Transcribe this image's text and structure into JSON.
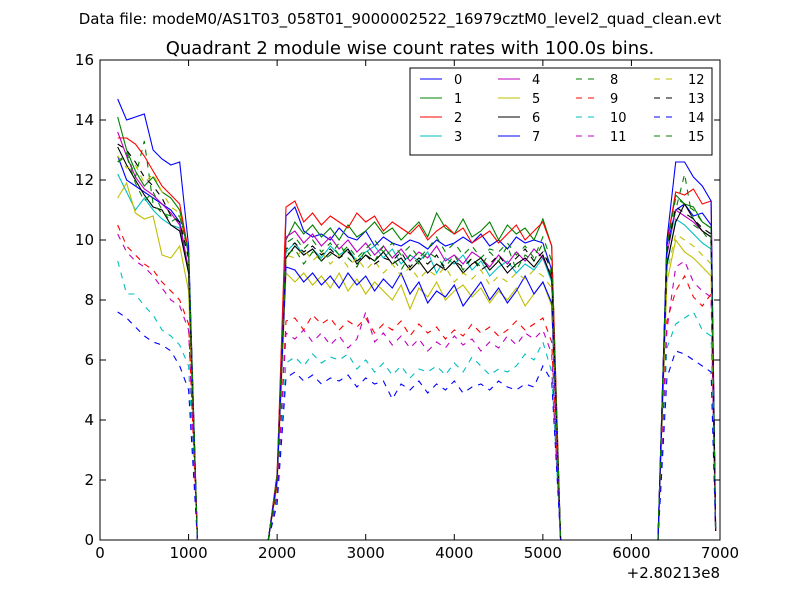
{
  "figure": {
    "suptitle": "Data file: modeM0/AS1T03_058T01_9000002522_16979cztM0_level2_quad_clean.evt"
  },
  "chart_data": {
    "type": "line",
    "title": "Quadrant 2 module wise count rates with 100.0s bins.",
    "xlabel": "",
    "ylabel": "",
    "xlim": [
      0,
      7000
    ],
    "ylim": [
      0,
      16
    ],
    "x_offset_label": "+2.80213e8",
    "xticks": [
      "0",
      "1000",
      "2000",
      "3000",
      "4000",
      "5000",
      "6000",
      "7000"
    ],
    "yticks": [
      "0",
      "2",
      "4",
      "6",
      "8",
      "10",
      "12",
      "14",
      "16"
    ],
    "grid": false,
    "legend_position": "top-right",
    "legend_columns": 4,
    "segments": {
      "x1": [
        200,
        300,
        400,
        500,
        600,
        700,
        800,
        900,
        1000,
        1100
      ],
      "x2": [
        1900,
        2000,
        2100,
        2200,
        2300,
        2400,
        2500,
        2600,
        2700,
        2800,
        2900,
        3000,
        3100,
        3200,
        3300,
        3400,
        3500,
        3600,
        3700,
        3800,
        3900,
        4000,
        4100,
        4200,
        4300,
        4400,
        4500,
        4600,
        4700,
        4800,
        4900,
        5000,
        5100,
        5200
      ],
      "x3": [
        6300,
        6400,
        6500,
        6600,
        6700,
        6800,
        6900,
        6950
      ]
    },
    "series": [
      {
        "name": "0",
        "color": "#0000ff",
        "dash": "solid",
        "seg1": [
          12.8,
          12.0,
          11.8,
          11.6,
          11.4,
          11.2,
          11.0,
          10.6,
          9.0,
          0.0
        ],
        "seg2": [
          0.0,
          2.0,
          10.8,
          11.1,
          10.3,
          10.1,
          10.2,
          10.0,
          10.4,
          10.1,
          10.0,
          10.3,
          9.8,
          10.1,
          9.9,
          9.8,
          10.0,
          9.9,
          9.7,
          10.0,
          9.8,
          9.9,
          10.1,
          9.9,
          10.2,
          9.8,
          10.0,
          9.7,
          10.1,
          9.9,
          10.0,
          9.9,
          9.0,
          0.0
        ],
        "seg3": [
          0.0,
          9.8,
          11.0,
          11.2,
          10.8,
          10.9,
          10.5,
          0.4
        ]
      },
      {
        "name": "1",
        "color": "#008000",
        "dash": "solid",
        "seg1": [
          14.1,
          13.0,
          12.3,
          11.8,
          12.1,
          11.6,
          11.4,
          11.0,
          9.5,
          0.0
        ],
        "seg2": [
          0.0,
          2.2,
          10.0,
          10.6,
          10.2,
          10.5,
          10.1,
          10.4,
          10.0,
          10.5,
          10.1,
          10.3,
          10.6,
          10.2,
          10.4,
          10.0,
          10.3,
          10.6,
          10.1,
          10.9,
          10.4,
          10.2,
          10.7,
          10.1,
          10.3,
          10.6,
          10.0,
          10.5,
          10.2,
          10.4,
          10.0,
          10.7,
          9.8,
          0.0
        ],
        "seg3": [
          0.0,
          9.9,
          11.5,
          11.2,
          11.1,
          10.6,
          10.4,
          0.4
        ]
      },
      {
        "name": "2",
        "color": "#ff0000",
        "dash": "solid",
        "seg1": [
          13.4,
          13.4,
          13.2,
          12.8,
          12.3,
          11.8,
          11.5,
          11.2,
          9.6,
          0.0
        ],
        "seg2": [
          0.0,
          2.2,
          11.1,
          11.3,
          10.6,
          10.9,
          10.5,
          10.8,
          10.6,
          10.4,
          10.9,
          10.6,
          10.8,
          10.3,
          10.6,
          10.4,
          10.2,
          10.5,
          10.0,
          10.3,
          10.5,
          10.2,
          10.4,
          9.9,
          10.1,
          10.3,
          9.9,
          10.2,
          10.5,
          10.0,
          10.3,
          10.6,
          9.8,
          0.0
        ],
        "seg3": [
          0.0,
          9.9,
          11.6,
          11.5,
          11.7,
          11.2,
          11.3,
          0.4
        ]
      },
      {
        "name": "3",
        "color": "#00bfbf",
        "dash": "solid",
        "seg1": [
          12.2,
          11.6,
          11.0,
          11.4,
          11.0,
          10.7,
          10.5,
          10.4,
          8.9,
          0.0
        ],
        "seg2": [
          0.0,
          2.0,
          9.6,
          9.9,
          9.5,
          9.7,
          9.4,
          9.8,
          9.5,
          9.7,
          9.3,
          9.6,
          9.8,
          9.4,
          9.7,
          9.2,
          9.5,
          9.3,
          9.6,
          8.9,
          9.4,
          9.2,
          9.5,
          9.0,
          9.3,
          8.8,
          9.1,
          9.3,
          8.9,
          9.2,
          9.0,
          9.4,
          8.6,
          0.0
        ],
        "seg3": [
          0.0,
          9.1,
          10.7,
          10.5,
          10.2,
          9.9,
          9.7,
          0.4
        ]
      },
      {
        "name": "4",
        "color": "#bf00bf",
        "dash": "solid",
        "seg1": [
          13.6,
          12.8,
          12.1,
          11.7,
          11.5,
          11.2,
          10.9,
          10.5,
          9.0,
          0.0
        ],
        "seg2": [
          0.0,
          2.0,
          10.1,
          10.3,
          9.9,
          10.2,
          9.8,
          10.1,
          9.7,
          10.0,
          9.6,
          9.9,
          9.5,
          9.8,
          9.4,
          9.7,
          9.3,
          9.6,
          9.4,
          9.8,
          9.3,
          9.5,
          9.2,
          9.6,
          9.4,
          9.1,
          9.5,
          9.2,
          9.6,
          9.3,
          9.7,
          9.4,
          8.8,
          0.0
        ],
        "seg3": [
          0.0,
          9.5,
          11.0,
          10.8,
          10.6,
          10.3,
          10.1,
          0.4
        ]
      },
      {
        "name": "5",
        "color": "#bfbf00",
        "dash": "solid",
        "seg1": [
          11.4,
          11.9,
          10.9,
          10.7,
          10.8,
          9.5,
          9.4,
          9.8,
          8.3,
          0.0
        ],
        "seg2": [
          0.0,
          1.8,
          8.9,
          8.6,
          8.9,
          8.5,
          8.8,
          8.4,
          8.9,
          8.3,
          8.7,
          8.2,
          8.6,
          8.3,
          8.0,
          8.5,
          7.7,
          8.4,
          8.1,
          8.6,
          8.0,
          8.3,
          8.5,
          8.1,
          8.4,
          7.9,
          8.3,
          8.0,
          8.4,
          7.8,
          8.2,
          8.6,
          7.8,
          0.0
        ],
        "seg3": [
          0.0,
          8.6,
          10.0,
          9.6,
          9.4,
          9.1,
          8.8,
          0.3
        ]
      },
      {
        "name": "6",
        "color": "#000000",
        "dash": "solid",
        "seg1": [
          13.1,
          12.5,
          12.0,
          11.5,
          11.1,
          11.0,
          10.5,
          10.3,
          8.9,
          0.0
        ],
        "seg2": [
          0.0,
          2.0,
          9.4,
          9.8,
          9.5,
          9.7,
          9.3,
          9.6,
          9.4,
          9.7,
          9.2,
          9.5,
          9.3,
          9.6,
          9.2,
          9.4,
          9.0,
          9.3,
          8.9,
          9.2,
          9.0,
          9.3,
          8.9,
          9.2,
          9.4,
          9.0,
          9.3,
          8.9,
          9.2,
          9.4,
          9.1,
          9.5,
          8.7,
          0.0
        ],
        "seg3": [
          0.0,
          9.2,
          10.6,
          11.2,
          10.7,
          10.3,
          10.1,
          0.3
        ]
      },
      {
        "name": "7",
        "color": "#0000ff",
        "dash": "solid",
        "seg1": [
          14.7,
          14.0,
          14.1,
          14.2,
          13.0,
          12.7,
          12.5,
          12.6,
          9.8,
          0.0
        ],
        "seg2": [
          0.0,
          2.0,
          9.1,
          9.0,
          8.6,
          8.9,
          8.5,
          8.8,
          8.4,
          8.9,
          8.5,
          8.8,
          8.3,
          8.7,
          8.4,
          8.9,
          8.2,
          8.6,
          7.9,
          8.3,
          8.1,
          8.5,
          7.8,
          8.2,
          8.6,
          8.0,
          8.4,
          7.9,
          8.3,
          8.8,
          8.2,
          8.6,
          7.9,
          0.0
        ],
        "seg3": [
          0.0,
          10.0,
          12.6,
          12.6,
          12.1,
          11.8,
          11.3,
          0.4
        ]
      },
      {
        "name": "8",
        "color": "#008000",
        "dash": "dashed",
        "seg1": [
          12.6,
          12.9,
          12.1,
          13.3,
          11.2,
          10.9,
          10.8,
          10.8,
          9.5,
          0.0
        ],
        "seg2": [
          0.0,
          2.1,
          9.5,
          9.7,
          9.2,
          9.6,
          9.3,
          9.5,
          9.9,
          9.4,
          9.1,
          9.7,
          9.3,
          9.8,
          9.4,
          9.0,
          9.5,
          9.2,
          9.6,
          9.4,
          9.1,
          9.5,
          9.0,
          9.4,
          9.1,
          9.6,
          9.3,
          9.8,
          9.0,
          9.5,
          9.3,
          9.9,
          8.8,
          0.0
        ],
        "seg3": [
          0.0,
          9.6,
          11.0,
          12.2,
          10.5,
          10.3,
          9.9,
          0.4
        ]
      },
      {
        "name": "9",
        "color": "#ff0000",
        "dash": "dashed",
        "seg1": [
          10.5,
          9.8,
          9.5,
          9.2,
          9.0,
          8.6,
          8.3,
          8.0,
          7.2,
          0.0
        ],
        "seg2": [
          0.0,
          1.6,
          7.3,
          7.4,
          7.0,
          7.5,
          7.2,
          7.4,
          7.0,
          7.3,
          7.1,
          7.4,
          6.9,
          7.2,
          7.0,
          7.3,
          6.8,
          7.2,
          6.9,
          7.1,
          6.7,
          7.0,
          6.8,
          7.2,
          6.9,
          7.1,
          6.8,
          7.0,
          7.3,
          7.0,
          7.2,
          7.4,
          6.6,
          0.0
        ],
        "seg3": [
          0.0,
          7.3,
          8.3,
          8.8,
          8.1,
          7.8,
          8.2,
          0.3
        ]
      },
      {
        "name": "10",
        "color": "#00bfbf",
        "dash": "dashed",
        "seg1": [
          9.3,
          8.2,
          8.2,
          7.8,
          7.5,
          7.0,
          6.8,
          6.5,
          5.8,
          0.0
        ],
        "seg2": [
          0.0,
          1.4,
          5.9,
          6.1,
          5.8,
          6.2,
          5.9,
          6.1,
          6.0,
          6.2,
          5.7,
          6.0,
          5.6,
          5.9,
          5.5,
          5.8,
          5.4,
          5.7,
          5.6,
          5.8,
          5.5,
          5.9,
          5.6,
          6.1,
          5.8,
          5.5,
          5.7,
          5.6,
          5.8,
          6.2,
          6.0,
          6.6,
          5.6,
          0.0
        ],
        "seg3": [
          0.0,
          6.4,
          7.2,
          7.4,
          7.6,
          7.0,
          6.8,
          0.3
        ]
      },
      {
        "name": "11",
        "color": "#bf00bf",
        "dash": "dashed",
        "seg1": [
          10.2,
          9.6,
          9.3,
          9.1,
          8.8,
          8.4,
          8.0,
          7.8,
          7.0,
          0.0
        ],
        "seg2": [
          0.0,
          1.5,
          6.9,
          6.7,
          7.0,
          6.6,
          6.9,
          6.5,
          6.8,
          6.4,
          6.7,
          7.6,
          6.6,
          6.9,
          6.5,
          6.8,
          6.4,
          6.7,
          6.3,
          6.6,
          6.4,
          6.8,
          6.5,
          6.7,
          6.3,
          6.6,
          6.4,
          6.8,
          6.5,
          6.9,
          6.7,
          7.0,
          6.2,
          0.0
        ],
        "seg3": [
          0.0,
          7.0,
          9.1,
          9.3,
          8.6,
          8.3,
          8.1,
          0.3
        ]
      },
      {
        "name": "12",
        "color": "#bfbf00",
        "dash": "dashed",
        "seg1": [
          12.8,
          12.4,
          12.5,
          11.9,
          12.2,
          11.6,
          11.1,
          10.9,
          9.3,
          0.0
        ],
        "seg2": [
          0.0,
          2.0,
          9.5,
          9.4,
          9.7,
          9.3,
          9.6,
          9.2,
          9.5,
          9.1,
          9.4,
          9.0,
          9.3,
          8.9,
          9.2,
          8.8,
          9.1,
          8.7,
          9.0,
          8.8,
          9.1,
          8.6,
          8.9,
          8.7,
          9.0,
          8.5,
          8.8,
          8.6,
          8.9,
          8.7,
          9.0,
          8.8,
          8.4,
          0.0
        ],
        "seg3": [
          0.0,
          8.9,
          10.2,
          10.0,
          9.8,
          9.5,
          9.2,
          0.3
        ]
      },
      {
        "name": "13",
        "color": "#000000",
        "dash": "dashed",
        "seg1": [
          13.2,
          13.0,
          12.6,
          12.1,
          11.8,
          11.4,
          10.8,
          10.6,
          9.4,
          0.0
        ],
        "seg2": [
          0.0,
          2.0,
          9.7,
          9.9,
          9.6,
          9.8,
          9.5,
          9.7,
          9.4,
          9.6,
          9.3,
          9.5,
          9.2,
          9.4,
          9.3,
          9.6,
          9.1,
          9.4,
          9.2,
          9.5,
          9.0,
          9.3,
          9.1,
          9.4,
          9.0,
          9.2,
          9.5,
          9.1,
          9.4,
          9.7,
          9.3,
          9.6,
          9.0,
          0.0
        ],
        "seg3": [
          0.0,
          9.6,
          11.1,
          10.9,
          10.7,
          10.4,
          10.2,
          0.3
        ]
      },
      {
        "name": "14",
        "color": "#0000ff",
        "dash": "dashed",
        "seg1": [
          7.6,
          7.4,
          7.1,
          6.8,
          6.6,
          6.5,
          6.3,
          5.8,
          5.0,
          0.0
        ],
        "seg2": [
          0.0,
          1.2,
          5.4,
          5.6,
          5.3,
          5.5,
          5.2,
          5.4,
          5.3,
          5.5,
          5.1,
          5.4,
          5.2,
          5.3,
          4.7,
          5.2,
          5.0,
          5.3,
          4.9,
          5.2,
          5.0,
          5.3,
          4.9,
          5.1,
          5.2,
          5.0,
          5.3,
          5.1,
          5.0,
          5.2,
          5.1,
          5.8,
          5.3,
          0.0
        ],
        "seg3": [
          0.0,
          5.4,
          6.3,
          6.2,
          6.0,
          5.8,
          5.6,
          0.3
        ]
      },
      {
        "name": "15",
        "color": "#008000",
        "dash": "dashed",
        "seg1": [
          12.6,
          12.8,
          11.9,
          11.3,
          11.6,
          11.0,
          10.6,
          10.8,
          9.6,
          0.0
        ],
        "seg2": [
          0.0,
          2.1,
          9.9,
          10.1,
          9.7,
          10.0,
          9.6,
          9.9,
          9.5,
          9.8,
          9.4,
          9.7,
          10.0,
          9.6,
          9.9,
          9.5,
          9.8,
          9.4,
          9.7,
          10.1,
          9.6,
          9.9,
          9.5,
          9.8,
          9.4,
          9.7,
          9.6,
          9.9,
          9.5,
          9.8,
          9.4,
          10.1,
          9.3,
          0.0
        ],
        "seg3": [
          0.0,
          9.8,
          11.4,
          11.2,
          11.0,
          10.6,
          10.4,
          0.4
        ]
      }
    ]
  }
}
